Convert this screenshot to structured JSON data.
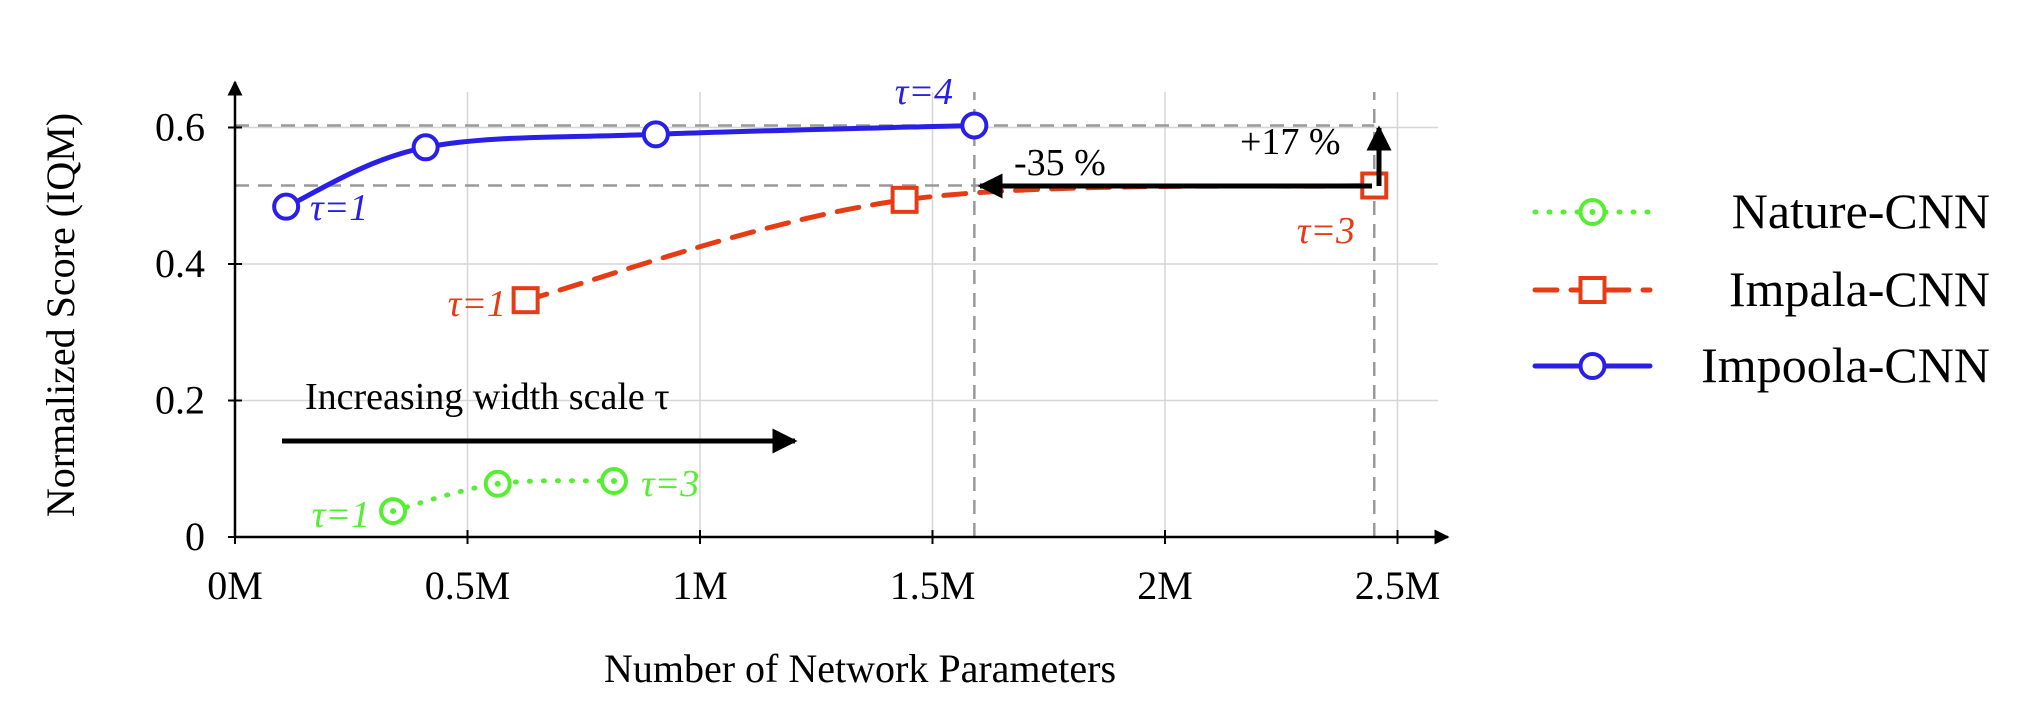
{
  "chart_data": {
    "type": "line",
    "xlabel": "Number of Network Parameters",
    "ylabel": "Normalized Score (IQM)",
    "xlim": [
      0,
      2600000
    ],
    "ylim": [
      0,
      0.64
    ],
    "x_ticks": [
      0,
      500000,
      1000000,
      1500000,
      2000000,
      2500000
    ],
    "x_tick_labels": [
      "0M",
      "0.5M",
      "1M",
      "1.5M",
      "2M",
      "2.5M"
    ],
    "y_ticks": [
      0,
      0.2,
      0.4,
      0.6
    ],
    "y_tick_labels": [
      "0",
      "0.2",
      "0.4",
      "0.6"
    ],
    "grid": true,
    "legend_position": "right",
    "series": [
      {
        "name": "Nature-CNN",
        "color": "#55ee33",
        "marker": "circle-dot",
        "line": "dotted",
        "x": [
          340000,
          565000,
          815000
        ],
        "y": [
          0.038,
          0.078,
          0.082
        ]
      },
      {
        "name": "Impala-CNN",
        "color": "#e63c16",
        "marker": "square",
        "line": "dashed",
        "x": [
          625000,
          1440000,
          2450000
        ],
        "y": [
          0.347,
          0.494,
          0.515
        ]
      },
      {
        "name": "Impoola-CNN",
        "color": "#2a1fe6",
        "marker": "circle",
        "line": "solid",
        "x": [
          110000,
          410000,
          905000,
          1590000
        ],
        "y": [
          0.484,
          0.571,
          0.59,
          0.603
        ]
      }
    ],
    "annotations": {
      "nature_first": "τ=1",
      "nature_last": "τ=3",
      "impala_first": "τ=1",
      "impala_last": "τ=3",
      "impoola_first": "τ=1",
      "impoola_last": "τ=4",
      "reduction": "-35 %",
      "improvement": "+17 %",
      "width_arrow": "Increasing width scale τ"
    },
    "reference_lines": {
      "vertical_x": [
        1590000,
        2450000
      ],
      "horizontal_y": [
        0.603,
        0.515
      ]
    }
  }
}
